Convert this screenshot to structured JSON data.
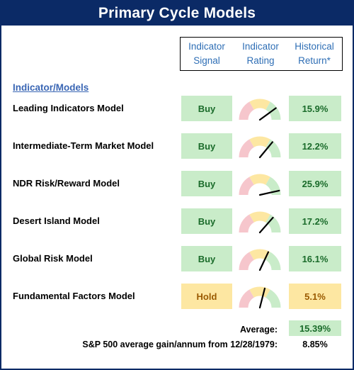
{
  "title": "Primary Cycle Models",
  "headers": {
    "signal": [
      "Indicator",
      "Signal"
    ],
    "rating": [
      "Indicator",
      "Rating"
    ],
    "return": [
      "Historical",
      "Return*"
    ]
  },
  "section_label": "Indicator/Models",
  "colors": {
    "title_bg": "#0b2a66",
    "buy_bg": "#c9ecc9",
    "hold_bg": "#fde7a2",
    "gauge_red": "#f6c6cc",
    "gauge_yellow": "#fde7a2",
    "gauge_green": "#c9ecc9"
  },
  "models": [
    {
      "name": "Leading Indicators Model",
      "signal": "Buy",
      "status": "buy",
      "rating": 0.8,
      "return": "15.9%"
    },
    {
      "name": "Intermediate-Term Market Model",
      "signal": "Buy",
      "status": "buy",
      "rating": 0.72,
      "return": "12.2%"
    },
    {
      "name": "NDR Risk/Reward Model",
      "signal": "Buy",
      "status": "buy",
      "rating": 0.93,
      "return": "25.9%"
    },
    {
      "name": "Desert Island Model",
      "signal": "Buy",
      "status": "buy",
      "rating": 0.73,
      "return": "17.2%"
    },
    {
      "name": "Global Risk Model",
      "signal": "Buy",
      "status": "buy",
      "rating": 0.64,
      "return": "16.1%"
    },
    {
      "name": "Fundamental Factors Model",
      "signal": "Hold",
      "status": "hold",
      "rating": 0.58,
      "return": "5.1%"
    }
  ],
  "summary": {
    "average_label": "Average:",
    "average_value": "15.39%",
    "sp_label": "S&P 500 average gain/annum from 12/28/1979:",
    "sp_value": "8.85%"
  }
}
